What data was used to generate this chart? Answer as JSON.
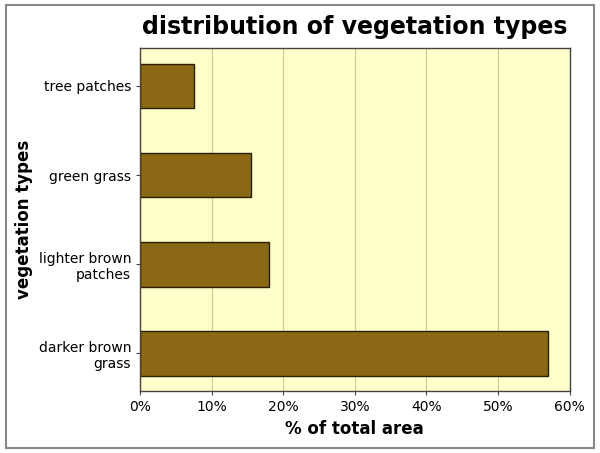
{
  "title": "distribution of vegetation types",
  "xlabel": "% of total area",
  "ylabel": "vegetation types",
  "categories": [
    "darker brown\ngrass",
    "lighter brown\npatches",
    "green grass",
    "tree patches"
  ],
  "values": [
    0.57,
    0.18,
    0.155,
    0.075
  ],
  "bar_color": "#8B6914",
  "bar_edgecolor": "#2a1e00",
  "fig_background": "#ffffff",
  "plot_bg_color": "#ffffcc",
  "border_color": "#888888",
  "xlim": [
    0,
    0.6
  ],
  "xticks": [
    0.0,
    0.1,
    0.2,
    0.3,
    0.4,
    0.5,
    0.6
  ],
  "xtick_labels": [
    "0%",
    "10%",
    "20%",
    "30%",
    "40%",
    "50%",
    "60%"
  ],
  "title_fontsize": 17,
  "axis_label_fontsize": 12,
  "tick_fontsize": 10,
  "bar_height": 0.5
}
